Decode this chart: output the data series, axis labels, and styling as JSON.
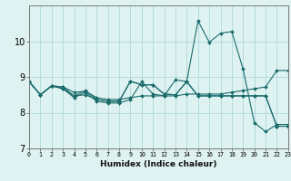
{
  "xlabel": "Humidex (Indice chaleur)",
  "ylabel": "",
  "bg_color": "#dff2f2",
  "grid_color": "#b0d8d8",
  "line_color": "#1a6b6b",
  "xlim": [
    0,
    23
  ],
  "ylim": [
    7,
    11
  ],
  "yticks": [
    7,
    8,
    9,
    10
  ],
  "xticks": [
    0,
    1,
    2,
    3,
    4,
    5,
    6,
    7,
    8,
    9,
    10,
    11,
    12,
    13,
    14,
    15,
    16,
    17,
    18,
    19,
    20,
    21,
    22,
    23
  ],
  "series": [
    [
      8.87,
      8.5,
      8.75,
      8.72,
      8.57,
      8.6,
      8.42,
      8.37,
      8.37,
      8.42,
      8.47,
      8.47,
      8.47,
      8.47,
      8.52,
      8.52,
      8.52,
      8.52,
      8.57,
      8.62,
      8.67,
      8.72,
      9.18,
      9.18
    ],
    [
      8.87,
      8.5,
      8.75,
      8.67,
      8.47,
      8.5,
      8.37,
      8.32,
      8.32,
      8.88,
      8.78,
      8.78,
      8.52,
      8.5,
      8.87,
      8.47,
      8.47,
      8.47,
      8.47,
      8.47,
      8.47,
      8.47,
      7.62,
      7.62
    ],
    [
      8.87,
      8.5,
      8.75,
      8.72,
      8.47,
      8.62,
      8.37,
      8.32,
      8.32,
      8.88,
      8.78,
      8.78,
      8.52,
      8.5,
      8.87,
      8.47,
      8.47,
      8.47,
      8.47,
      8.47,
      8.47,
      8.47,
      7.62,
      7.62
    ],
    [
      8.87,
      8.5,
      8.75,
      8.67,
      8.42,
      8.57,
      8.32,
      8.27,
      8.27,
      8.37,
      8.87,
      8.52,
      8.47,
      8.92,
      8.87,
      10.57,
      9.97,
      10.22,
      10.27,
      9.22,
      7.72,
      7.47,
      7.67,
      7.67
    ]
  ]
}
